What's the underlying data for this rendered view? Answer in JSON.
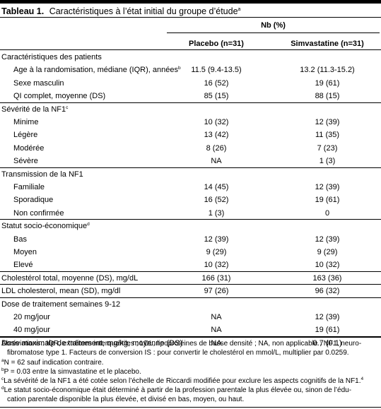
{
  "caption": {
    "label": "Tableau 1.",
    "title": "Caractéristiques à l’état initial du groupe d’étude",
    "sup": "a"
  },
  "header": {
    "nb": "Nb (%)",
    "col1": "Placebo (n=31)",
    "col2": "Simvastatine (n=31)"
  },
  "rows": [
    {
      "label": "Caractéristiques des patients",
      "sup": "",
      "v1": "",
      "v2": "",
      "indent": false
    },
    {
      "label": "Age à la randomisation, médiane (IQR), années",
      "sup": "b",
      "v1": "11.5 (9.4-13.5)",
      "v2": "13.2 (11.3-15.2)",
      "indent": true
    },
    {
      "label": "Sexe masculin",
      "sup": "",
      "v1": "16 (52)",
      "v2": "19 (61)",
      "indent": true
    },
    {
      "label": "QI complet, moyenne (DS)",
      "sup": "",
      "v1": "85 (15)",
      "v2": "88 (15)",
      "indent": true
    },
    {
      "label": "Sévérité de la NF1",
      "sup": "c",
      "v1": "",
      "v2": "",
      "indent": false
    },
    {
      "label": "Minime",
      "sup": "",
      "v1": "10 (32)",
      "v2": "12 (39)",
      "indent": true
    },
    {
      "label": "Légère",
      "sup": "",
      "v1": "13 (42)",
      "v2": "11 (35)",
      "indent": true
    },
    {
      "label": "Modérée",
      "sup": "",
      "v1": "8 (26)",
      "v2": "7 (23)",
      "indent": true
    },
    {
      "label": "Sévère",
      "sup": "",
      "v1": "NA",
      "v2": "1 (3)",
      "indent": true
    },
    {
      "label": "Transmission de la NF1",
      "sup": "",
      "v1": "",
      "v2": "",
      "indent": false
    },
    {
      "label": "Familiale",
      "sup": "",
      "v1": "14 (45)",
      "v2": "12 (39)",
      "indent": true
    },
    {
      "label": "Sporadique",
      "sup": "",
      "v1": "16 (52)",
      "v2": "19 (61)",
      "indent": true
    },
    {
      "label": "Non confirmée",
      "sup": "",
      "v1": "1 (3)",
      "v2": "0",
      "indent": true
    },
    {
      "label": "Statut socio-économique",
      "sup": "d",
      "v1": "",
      "v2": "",
      "indent": false
    },
    {
      "label": "Bas",
      "sup": "",
      "v1": "12 (39)",
      "v2": "12 (39)",
      "indent": true
    },
    {
      "label": "Moyen",
      "sup": "",
      "v1": "9 (29)",
      "v2": "9 (29)",
      "indent": true
    },
    {
      "label": "Elevé",
      "sup": "",
      "v1": "10 (32)",
      "v2": "10 (32)",
      "indent": true
    },
    {
      "label": "Cholestérol total, moyenne (DS), mg/dL",
      "sup": "",
      "v1": "166 (31)",
      "v2": "163 (36)",
      "indent": false
    },
    {
      "label": "LDL cholesterol, mean (SD), mg/dl",
      "sup": "",
      "v1": "97 (26)",
      "v2": "96 (32)",
      "indent": false
    },
    {
      "label": "Dose de traitement semaines 9-12",
      "sup": "",
      "v1": "",
      "v2": "",
      "indent": false
    },
    {
      "label": "20 mg/jour",
      "sup": "",
      "v1": "NA",
      "v2": "12 (39)",
      "indent": true
    },
    {
      "label": "40 mg/jour",
      "sup": "",
      "v1": "NA",
      "v2": "19 (61)",
      "indent": true
    },
    {
      "label": "Dose maximale de traitement, mg/kg, moyenne (DS)",
      "sup": "",
      "v1": "NA",
      "v2": "0.7 (0.1)",
      "indent": false
    }
  ],
  "footnotes": {
    "abbr_line1": "Abréviations : IQR, extrêmes interquartiles ; LDL, lipoprotéines de basse densité ; NA, non applicable ; NF1, neuro-",
    "abbr_line2": "fibromatose type 1. Facteurs de conversion IS : pour convertir le cholestérol en mmol/L, multiplier par 0.0259.",
    "a_mark": "a",
    "a_text": "N = 62 sauf indication contraire.",
    "b_mark": "b",
    "b_text": "P = 0.03 entre la simvastatine et le placebo.",
    "c_mark": "c",
    "c_text": "La sévérité de la NF1 a été cotée selon l’échelle de Riccardi modifiée pour exclure les aspects cognitifs de la NF1.",
    "c_ref": "4",
    "d_mark": "d",
    "d_line1": "Le statut socio-économique était déterminé à partir de la profession parentale la plus élevée ou, sinon de l’édu-",
    "d_line2": "cation parentale disponible la plus élevée, et divisé en bas, moyen, ou haut."
  }
}
